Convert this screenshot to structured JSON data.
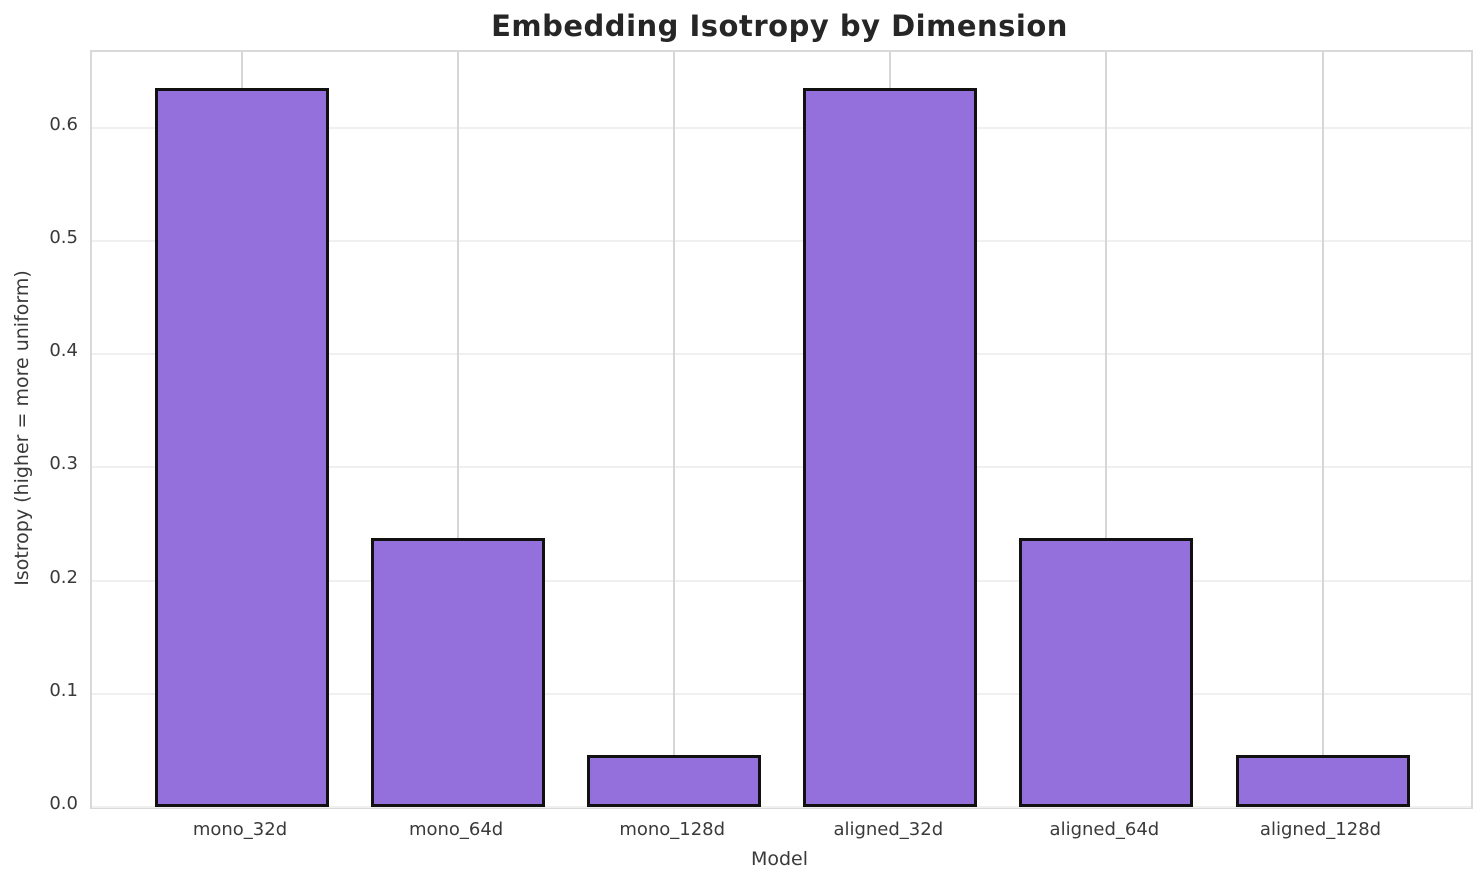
{
  "chart_data": {
    "type": "bar",
    "title": "Embedding Isotropy by Dimension",
    "xlabel": "Model",
    "ylabel": "Isotropy (higher = more uniform)",
    "categories": [
      "mono_32d",
      "mono_64d",
      "mono_128d",
      "aligned_32d",
      "aligned_64d",
      "aligned_128d"
    ],
    "values": [
      0.635,
      0.238,
      0.046,
      0.635,
      0.238,
      0.046
    ],
    "yticks": [
      0.0,
      0.1,
      0.2,
      0.3,
      0.4,
      0.5,
      0.6
    ],
    "ylim": [
      0,
      0.667
    ],
    "grid": true,
    "legend": "none",
    "bar_color": "#9370DB",
    "bar_edge_color": "#111111",
    "gridline_color_horizontal": "#f0f0f0",
    "gridline_color_vertical": "#d6d6d6",
    "spine_color": "#d9d9d9",
    "title_color": "#262626",
    "text_color": "#3a3a3a"
  }
}
